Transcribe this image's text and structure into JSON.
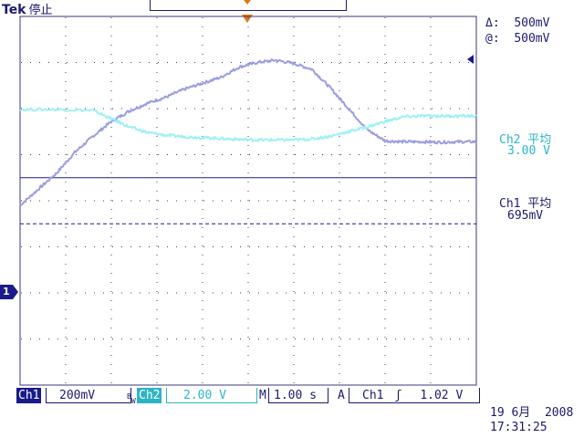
{
  "header": {
    "brand": "Tek",
    "state": "停止"
  },
  "measurements": {
    "delta_label": "Δ:",
    "delta_value": "500mV",
    "at_label": "@:",
    "at_value": "500mV",
    "ch2_label": "Ch2 平均",
    "ch2_value": "3.00 V",
    "ch1_label": "Ch1 平均",
    "ch1_value": "695mV"
  },
  "channel_marker": "1",
  "statusbar": {
    "ch1_name": "Ch1",
    "ch1_scale": "200mV",
    "bw": "B",
    "bw2": "W",
    "ch2_name": "Ch2",
    "ch2_scale": "2.00 V",
    "time_prefix": "M",
    "time_scale": "1.00 s",
    "acq_mode": "A",
    "trig_source": "Ch1",
    "trig_slope": "ʃ",
    "trig_level": "1.02 V"
  },
  "datetime": {
    "date": "19 6月  2008",
    "time": "17:31:25"
  },
  "colors": {
    "ch1": "#1a1a8a",
    "ch2": "#2bb5c4",
    "trace_lilac": "#9a9ee0",
    "trace_cyan": "#9ff0f5",
    "grid": "#3a3a7a",
    "trigger": "#e07a10"
  },
  "chart_data": {
    "type": "line",
    "title": "",
    "xlabel": "",
    "ylabel": "",
    "x_divisions": 10,
    "y_divisions": 8,
    "xlim": [
      0,
      10
    ],
    "ylim": [
      -4,
      4
    ],
    "grid": true,
    "series": [
      {
        "name": "",
        "color_key": "trace_lilac",
        "x": [
          0,
          0.4,
          0.8,
          1.2,
          1.6,
          2.0,
          2.4,
          2.8,
          3.2,
          3.6,
          4.0,
          4.4,
          4.8,
          5.2,
          5.6,
          6.0,
          6.4,
          6.8,
          7.2,
          7.6,
          8.0,
          8.4,
          8.8,
          9.2,
          9.6,
          10.0
        ],
        "y": [
          -0.1,
          0.25,
          0.6,
          1.05,
          1.4,
          1.72,
          1.95,
          2.12,
          2.25,
          2.42,
          2.55,
          2.68,
          2.9,
          3.0,
          3.05,
          2.98,
          2.85,
          2.45,
          2.0,
          1.55,
          1.3,
          1.28,
          1.28,
          1.27,
          1.28,
          1.28
        ]
      },
      {
        "name": "",
        "color_key": "trace_cyan",
        "x": [
          0,
          0.8,
          1.6,
          2.0,
          2.4,
          2.8,
          3.2,
          3.6,
          4.0,
          4.4,
          4.8,
          5.2,
          5.6,
          6.0,
          6.4,
          6.8,
          7.2,
          7.6,
          8.0,
          8.4,
          8.8,
          9.2,
          9.6,
          10.0
        ],
        "y": [
          1.98,
          1.98,
          1.96,
          1.78,
          1.6,
          1.48,
          1.42,
          1.39,
          1.37,
          1.35,
          1.33,
          1.32,
          1.32,
          1.32,
          1.34,
          1.4,
          1.5,
          1.6,
          1.72,
          1.82,
          1.84,
          1.84,
          1.84,
          1.84
        ]
      }
    ],
    "reference_lines": [
      {
        "y": 0.5,
        "style": "solid"
      },
      {
        "y": -0.5,
        "style": "dashed"
      }
    ]
  }
}
